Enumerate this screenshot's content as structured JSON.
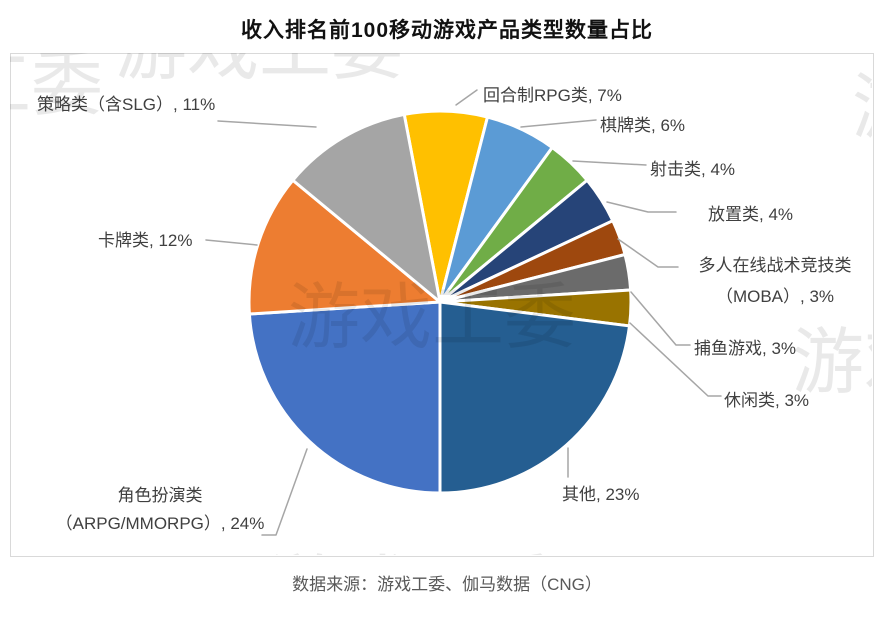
{
  "title": "收入排名前100移动游戏产品类型数量占比",
  "source": "数据来源：游戏工委、伽马数据（CNG）",
  "watermark_text": "游戏工委",
  "chart_data": {
    "type": "pie",
    "title": "收入排名前100移动游戏产品类型数量占比",
    "unit": "%",
    "start_angle_deg": -10.8,
    "clockwise": true,
    "legend_position": "none",
    "label_style": "outside callouts with leader lines",
    "slices": [
      {
        "key": "turn-based-rpg",
        "label": "回合制RPG类",
        "value": 7,
        "color": "#FFC000"
      },
      {
        "key": "chess-card",
        "label": "棋牌类",
        "value": 6,
        "color": "#5B9BD5"
      },
      {
        "key": "shooting",
        "label": "射击类",
        "value": 4,
        "color": "#70AD47"
      },
      {
        "key": "idle",
        "label": "放置类",
        "value": 4,
        "color": "#264478"
      },
      {
        "key": "moba",
        "label": "多人在线战术竞技类（MOBA）",
        "value": 3,
        "color": "#9E480E"
      },
      {
        "key": "fishing",
        "label": "捕鱼游戏",
        "value": 3,
        "color": "#6B6B6B"
      },
      {
        "key": "casual",
        "label": "休闲类",
        "value": 3,
        "color": "#997300"
      },
      {
        "key": "other",
        "label": "其他",
        "value": 23,
        "color": "#255E91"
      },
      {
        "key": "arpg-mmorpg",
        "label": "角色扮演类（ARPG/MMORPG）",
        "value": 24,
        "color": "#4472C4"
      },
      {
        "key": "card",
        "label": "卡牌类",
        "value": 12,
        "color": "#ED7D31"
      },
      {
        "key": "strategy",
        "label": "策略类（含SLG）",
        "value": 11,
        "color": "#A5A5A5"
      }
    ]
  },
  "callouts": {
    "strategy": "策略类（含SLG）, 11%",
    "turn_rpg": "回合制RPG类, 7%",
    "chess": "棋牌类, 6%",
    "shooting": "射击类, 4%",
    "idle": "放置类, 4%",
    "moba_line1": "多人在线战术竞技类",
    "moba_line2": "（MOBA）, 3%",
    "fishing": "捕鱼游戏, 3%",
    "casual": "休闲类, 3%",
    "other": "其他, 23%",
    "rpg_line1": "角色扮演类",
    "rpg_line2": "（ARPG/MMORPG）, 24%",
    "card": "卡牌类, 12%"
  }
}
